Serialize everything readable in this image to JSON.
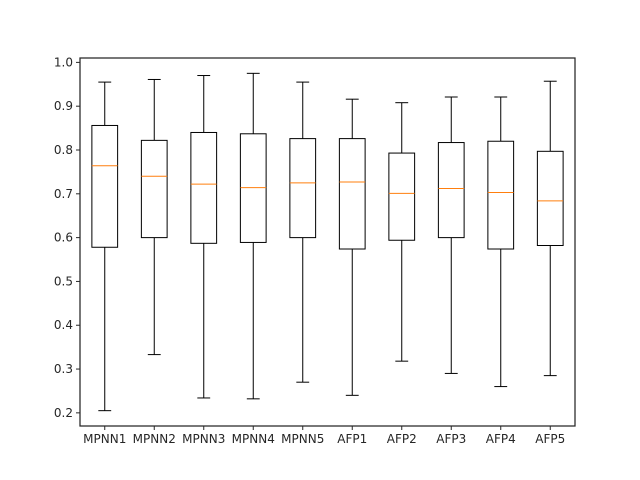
{
  "chart_data": {
    "type": "box",
    "title": "",
    "xlabel": "",
    "ylabel": "",
    "ylim": [
      0.17,
      1.01
    ],
    "y_ticks": [
      0.2,
      0.3,
      0.4,
      0.5,
      0.6,
      0.7,
      0.8,
      0.9,
      1.0
    ],
    "y_tick_labels": [
      "0.2",
      "0.3",
      "0.4",
      "0.5",
      "0.6",
      "0.7",
      "0.8",
      "0.9",
      "1.0"
    ],
    "grid": false,
    "colors": {
      "box": "#000000",
      "median": "#ff7f0e",
      "axis": "#262626"
    },
    "categories": [
      "MPNN1",
      "MPNN2",
      "MPNN3",
      "MPNN4",
      "MPNN5",
      "AFP1",
      "AFP2",
      "AFP3",
      "AFP4",
      "AFP5"
    ],
    "boxes": [
      {
        "whisker_low": 0.205,
        "q1": 0.578,
        "median": 0.764,
        "q3": 0.856,
        "whisker_high": 0.955
      },
      {
        "whisker_low": 0.333,
        "q1": 0.6,
        "median": 0.74,
        "q3": 0.822,
        "whisker_high": 0.961
      },
      {
        "whisker_low": 0.234,
        "q1": 0.587,
        "median": 0.722,
        "q3": 0.84,
        "whisker_high": 0.97
      },
      {
        "whisker_low": 0.232,
        "q1": 0.589,
        "median": 0.714,
        "q3": 0.837,
        "whisker_high": 0.975
      },
      {
        "whisker_low": 0.27,
        "q1": 0.6,
        "median": 0.725,
        "q3": 0.826,
        "whisker_high": 0.955
      },
      {
        "whisker_low": 0.24,
        "q1": 0.574,
        "median": 0.727,
        "q3": 0.826,
        "whisker_high": 0.916
      },
      {
        "whisker_low": 0.318,
        "q1": 0.594,
        "median": 0.701,
        "q3": 0.793,
        "whisker_high": 0.908
      },
      {
        "whisker_low": 0.29,
        "q1": 0.6,
        "median": 0.712,
        "q3": 0.817,
        "whisker_high": 0.921
      },
      {
        "whisker_low": 0.26,
        "q1": 0.574,
        "median": 0.703,
        "q3": 0.82,
        "whisker_high": 0.921
      },
      {
        "whisker_low": 0.285,
        "q1": 0.582,
        "median": 0.684,
        "q3": 0.797,
        "whisker_high": 0.957
      }
    ]
  }
}
